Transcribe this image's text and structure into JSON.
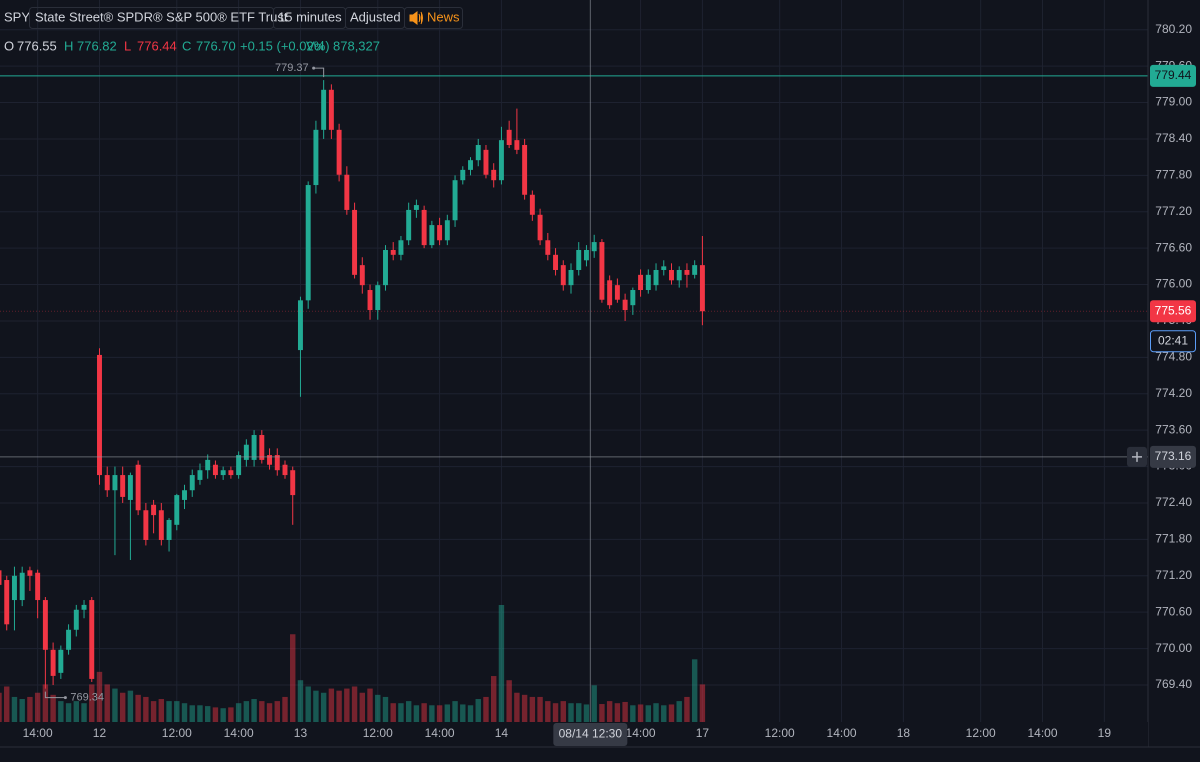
{
  "header": {
    "symbol": "SPY",
    "name": "State Street® SPDR® S&P 500® ETF Trust",
    "interval": "15 minutes",
    "adjustment": "Adjusted",
    "news": "News",
    "legend": {
      "o_label": "O",
      "o": "776.55",
      "h_label": "H",
      "h": "776.82",
      "l_label": "L",
      "l": "776.44",
      "c_label": "C",
      "c": "776.70",
      "change": "+0.15 (+0.02%)",
      "vol_label": "Vol",
      "vol": "878,327"
    }
  },
  "chart_data": {
    "type": "candlestick",
    "up_color": "#22ab94",
    "down_color": "#f23645",
    "grid": true,
    "ylim": [
      768.79,
      780.69
    ],
    "yticks": [
      {
        "value": 769.4,
        "label": "769.40"
      },
      {
        "value": 770,
        "label": "770.00"
      },
      {
        "value": 770.6,
        "label": "770.60"
      },
      {
        "value": 771.2,
        "label": "771.20"
      },
      {
        "value": 771.8,
        "label": "771.80"
      },
      {
        "value": 772.4,
        "label": "772.40"
      },
      {
        "value": 773,
        "label": "773.00"
      },
      {
        "value": 773.6,
        "label": "773.60"
      },
      {
        "value": 774.2,
        "label": "774.20"
      },
      {
        "value": 774.8,
        "label": "774.80"
      },
      {
        "value": 775.4,
        "label": "775.40"
      },
      {
        "value": 776,
        "label": "776.00"
      },
      {
        "value": 776.6,
        "label": "776.60"
      },
      {
        "value": 777.2,
        "label": "777.20"
      },
      {
        "value": 777.8,
        "label": "777.80"
      },
      {
        "value": 778.4,
        "label": "778.40"
      },
      {
        "value": 779,
        "label": "779.00"
      },
      {
        "value": 779.6,
        "label": "779.60"
      },
      {
        "value": 780.2,
        "label": "780.20"
      }
    ],
    "xlim": [
      0,
      148
    ],
    "xticks": [
      {
        "value": 5,
        "label": "14:00"
      },
      {
        "value": 13,
        "label": "12"
      },
      {
        "value": 23,
        "label": "12:00"
      },
      {
        "value": 31,
        "label": "14:00"
      },
      {
        "value": 39,
        "label": "13"
      },
      {
        "value": 49,
        "label": "12:00"
      },
      {
        "value": 57,
        "label": "14:00"
      },
      {
        "value": 65,
        "label": "14"
      },
      {
        "value": 83,
        "label": "14:00"
      },
      {
        "value": 91,
        "label": "17"
      },
      {
        "value": 101,
        "label": "12:00"
      },
      {
        "value": 109,
        "label": "14:00"
      },
      {
        "value": 117,
        "label": "18"
      },
      {
        "value": 127,
        "label": "12:00"
      },
      {
        "value": 135,
        "label": "14:00"
      },
      {
        "value": 143,
        "label": "19"
      }
    ],
    "open": [
      771.29,
      771.13,
      770.8,
      770.8,
      771.29,
      771.25,
      770.8,
      769.98,
      769.6,
      769.98,
      770.31,
      770.64,
      770.8,
      774.84,
      772.86,
      772.61,
      772.86,
      772.45,
      773.03,
      772.28,
      772.37,
      772.28,
      771.79,
      772.04,
      772.45,
      772.61,
      772.78,
      772.94,
      773.03,
      772.86,
      772.94,
      772.86,
      773.11,
      773.11,
      773.52,
      773.19,
      773.19,
      773.03,
      772.94,
      774.92,
      775.74,
      777.64,
      778.55,
      779.21,
      778.55,
      777.81,
      777.23,
      776.32,
      775.91,
      775.58,
      775.99,
      776.57,
      776.49,
      776.73,
      777.23,
      777.23,
      776.65,
      776.98,
      776.73,
      777.06,
      777.72,
      777.89,
      778.05,
      778.22,
      777.89,
      777.72,
      778.55,
      778.38,
      778.3,
      777.48,
      777.15,
      776.73,
      776.49,
      776.32,
      775.99,
      776.24,
      776.4,
      776.55,
      776.7,
      776.07,
      775.99,
      775.75,
      775.66,
      776.16,
      775.91,
      775.99,
      776.24,
      776.24,
      776.07,
      776.24,
      776.16,
      776.32
    ],
    "high": [
      771.4,
      771.2,
      771.35,
      771.35,
      771.35,
      771.3,
      770.85,
      770.1,
      770.05,
      770.4,
      770.72,
      770.8,
      770.85,
      774.95,
      773.0,
      773.0,
      773.0,
      772.9,
      773.1,
      772.4,
      772.45,
      772.4,
      772.15,
      772.55,
      772.7,
      772.95,
      773.05,
      773.2,
      773.1,
      773.0,
      773.0,
      773.25,
      773.45,
      773.6,
      773.6,
      773.3,
      773.3,
      773.1,
      773.0,
      775.8,
      777.7,
      778.7,
      779.37,
      779.3,
      778.65,
      777.95,
      777.35,
      776.45,
      776.0,
      776.05,
      776.65,
      776.7,
      776.8,
      777.35,
      777.4,
      777.3,
      777.05,
      777.1,
      777.15,
      777.8,
      777.95,
      778.1,
      778.4,
      778.3,
      778.0,
      778.6,
      778.7,
      778.9,
      778.4,
      777.55,
      777.25,
      776.85,
      776.6,
      776.4,
      776.35,
      776.7,
      776.65,
      776.82,
      776.75,
      776.15,
      776.1,
      775.85,
      775.95,
      776.25,
      776.25,
      776.35,
      776.4,
      776.35,
      776.3,
      776.35,
      776.4,
      776.8
    ],
    "low": [
      770.95,
      770.3,
      770.3,
      770.7,
      770.95,
      770.5,
      769.34,
      769.4,
      769.5,
      769.9,
      770.2,
      770.5,
      769.45,
      772.7,
      772.5,
      771.54,
      772.4,
      771.46,
      772.2,
      771.7,
      771.9,
      771.7,
      771.6,
      771.95,
      772.3,
      772.5,
      772.7,
      772.8,
      772.8,
      772.78,
      772.8,
      772.8,
      773.0,
      773.0,
      773.05,
      772.95,
      772.85,
      772.8,
      772.04,
      774.15,
      775.6,
      777.5,
      778.4,
      778.4,
      777.7,
      777.15,
      776.1,
      775.85,
      775.42,
      775.42,
      775.9,
      776.4,
      776.4,
      776.65,
      777.1,
      776.6,
      776.6,
      776.65,
      776.65,
      776.95,
      777.65,
      777.8,
      777.95,
      777.75,
      777.6,
      777.65,
      778.25,
      778.15,
      777.4,
      777.05,
      776.65,
      776.4,
      776.15,
      775.9,
      775.85,
      776.15,
      776.3,
      776.44,
      775.7,
      775.6,
      775.7,
      775.4,
      775.5,
      775.8,
      775.85,
      775.9,
      776.15,
      776.0,
      775.95,
      775.95,
      776.1,
      775.33
    ],
    "close": [
      771.05,
      770.4,
      771.2,
      771.25,
      771.2,
      770.8,
      769.98,
      769.55,
      769.98,
      770.31,
      770.64,
      770.72,
      769.5,
      772.86,
      772.61,
      772.86,
      772.5,
      772.86,
      772.28,
      771.79,
      772.2,
      771.79,
      772.12,
      772.53,
      772.61,
      772.86,
      772.94,
      773.11,
      772.86,
      772.94,
      772.86,
      773.19,
      773.36,
      773.52,
      773.11,
      773.03,
      772.94,
      772.86,
      772.53,
      775.74,
      777.64,
      778.55,
      779.21,
      778.55,
      777.81,
      777.23,
      776.16,
      775.99,
      775.58,
      775.99,
      776.57,
      776.49,
      776.73,
      777.23,
      777.31,
      776.65,
      776.98,
      776.73,
      777.06,
      777.72,
      777.89,
      778.05,
      778.3,
      777.81,
      777.72,
      778.38,
      778.3,
      778.22,
      777.48,
      777.15,
      776.73,
      776.49,
      776.24,
      775.99,
      776.24,
      776.57,
      776.57,
      776.7,
      775.75,
      775.66,
      775.75,
      775.58,
      775.91,
      775.91,
      776.16,
      776.24,
      776.3,
      776.07,
      776.24,
      776.16,
      776.32,
      775.56
    ],
    "volume": [
      700000,
      850000,
      600000,
      550000,
      600000,
      700000,
      900000,
      650000,
      500000,
      450000,
      500000,
      450000,
      900000,
      1200000,
      900000,
      800000,
      700000,
      750000,
      650000,
      600000,
      500000,
      550000,
      500000,
      500000,
      450000,
      400000,
      400000,
      380000,
      350000,
      330000,
      350000,
      450000,
      500000,
      550000,
      500000,
      450000,
      500000,
      600000,
      2100000,
      1000000,
      850000,
      750000,
      700000,
      800000,
      750000,
      800000,
      850000,
      700000,
      800000,
      650000,
      600000,
      450000,
      450000,
      500000,
      400000,
      450000,
      400000,
      400000,
      420000,
      500000,
      420000,
      400000,
      550000,
      600000,
      1100000,
      2800000,
      1000000,
      700000,
      650000,
      600000,
      600000,
      500000,
      450000,
      500000,
      450000,
      450000,
      420000,
      878327,
      430000,
      500000,
      450000,
      480000,
      400000,
      420000,
      400000,
      450000,
      400000,
      420000,
      500000,
      600000,
      1500000,
      900000
    ],
    "high_marker": {
      "value": 779.37,
      "x": 42
    },
    "low_marker": {
      "value": 769.34,
      "x": 6
    },
    "session_high_line": 779.44,
    "last_price": 775.56,
    "countdown": "02:41",
    "crosshair": {
      "y": 773.16,
      "x": 76.5,
      "x_label": "08/14 12:30"
    }
  }
}
